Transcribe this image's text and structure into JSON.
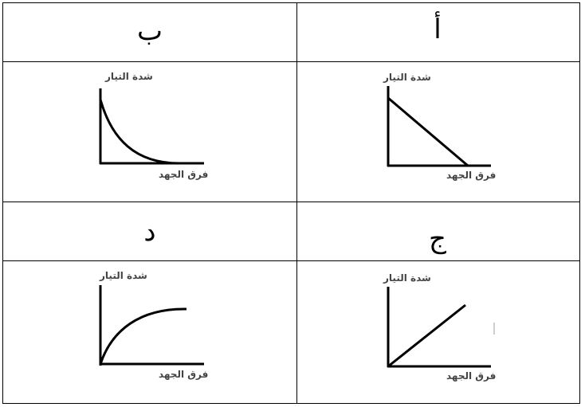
{
  "cells": {
    "a": {
      "letter": "أ",
      "ylabel": "شدة التيار",
      "xlabel": "فرق الجهد",
      "curve": "linear-decreasing"
    },
    "b": {
      "letter": "ب",
      "ylabel": "شدة التيار",
      "xlabel": "فرق الجهد",
      "curve": "exponential-decay"
    },
    "c": {
      "letter": "ج",
      "ylabel": "شدة التيار",
      "xlabel": "فرق الجهد",
      "curve": "linear-increasing"
    },
    "d": {
      "letter": "د",
      "ylabel": "شدة التيار",
      "xlabel": "فرق الجهد",
      "curve": "saturating-growth"
    }
  }
}
